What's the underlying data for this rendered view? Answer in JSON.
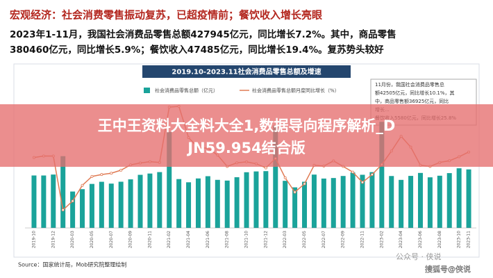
{
  "header": {
    "title": "宏观经济：社会消费零售振动复苏，已超疫情前；餐饮收入增长亮眼",
    "lines": [
      "2023年1-11月，我国社会消费品零售总额427945亿元，同比增长7.2%。其中，商品零售",
      "380460亿元，同比增长5.9%；餐饮收入47485亿元，同比增长19.4%。复苏势头较好"
    ]
  },
  "banner": [
    "王中王资料大全料大全1,数据导向程序解析_D",
    "JN59.954结合版"
  ],
  "source": "Source：国家统计局，Mob研究院整理绘制",
  "watermarks": [
    "公众号 · 侠说",
    "搜狐号@侠说"
  ],
  "chart_data": {
    "type": "bar",
    "title": "2019.10-2023.11社会消费品零售总额及增速",
    "annotation": [
      "11月份，我国社会消费品零售总",
      "额42505亿元，同比增长10.1%，其",
      "中，商品零售额36925亿元，同比",
      "增长...",
      "餐饮收入5580亿元，同比增长25.8%"
    ],
    "categories": [
      "2019-10",
      null,
      "2019-12",
      null,
      "2020-03",
      null,
      "2020-05",
      null,
      "2020-07",
      null,
      "2020-09",
      null,
      "2020-11",
      null,
      "2021-02",
      null,
      "2021-04",
      null,
      "2021-06",
      null,
      "2021-08",
      null,
      "2021-10",
      null,
      "2021-12",
      null,
      "2022-03",
      null,
      "2022-05",
      null,
      "2022-07",
      null,
      "2022-09",
      null,
      "2022-11",
      null,
      "2023-02",
      null,
      "2023-04",
      null,
      "2023-06",
      null,
      "2023-08",
      null,
      "2023-10",
      "2023-11"
    ],
    "ylim": [
      0,
      110000
    ],
    "y2lim": [
      -30,
      50
    ],
    "series": [
      {
        "name": "社会消费品零售总额（亿元）",
        "color": "#1aa39a",
        "values": [
          38104,
          38094,
          38777,
          52130,
          26450,
          28178,
          31973,
          33526,
          32203,
          33571,
          35295,
          38576,
          39514,
          40566,
          69737,
          35484,
          33153,
          35945,
          37586,
          34925,
          34395,
          36833,
          40454,
          41043,
          41269,
          74426,
          34233,
          29483,
          33547,
          38742,
          35870,
          36258,
          37745,
          40271,
          38615,
          40542,
          77067,
          37715,
          34910,
          37803,
          39951,
          36761,
          37933,
          39826,
          43333,
          42505
        ]
      },
      {
        "name": "社会消费品零售总额月度同比增长（%）",
        "color": "#e07b54",
        "axis": "y2",
        "values": [
          7.2,
          8.0,
          8.0,
          -20.5,
          -15.8,
          -7.5,
          -2.8,
          -1.8,
          -1.1,
          0.5,
          3.3,
          4.3,
          5.0,
          4.6,
          33.8,
          34.2,
          17.7,
          12.4,
          12.1,
          8.5,
          2.5,
          4.4,
          4.9,
          3.9,
          1.7,
          6.7,
          -3.5,
          -11.1,
          -6.7,
          3.1,
          2.7,
          5.4,
          2.5,
          -0.5,
          -5.9,
          -1.8,
          3.5,
          10.6,
          18.4,
          12.7,
          3.1,
          2.5,
          4.6,
          5.5,
          7.6,
          10.1
        ]
      }
    ]
  }
}
